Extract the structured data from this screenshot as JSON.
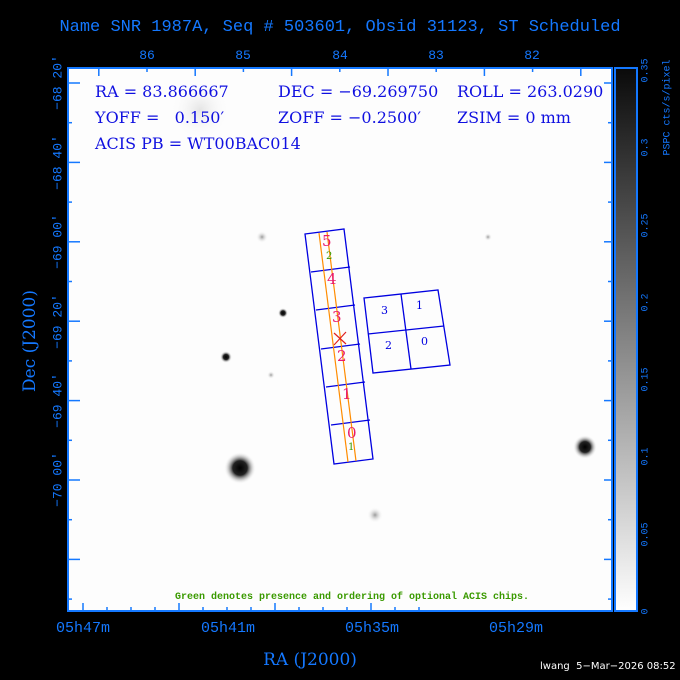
{
  "title": "Name SNR 1987A, Seq # 503601, Obsid 31123, ST Scheduled",
  "info": {
    "ra": "RA = 83.866667",
    "dec": "DEC = −69.269750",
    "roll": "ROLL = 263.0290",
    "yoff": "YOFF =   0.150′",
    "zoff": "ZOFF = −0.2500′",
    "zsim": "ZSIM = 0 mm",
    "acis_pb": "ACIS PB = WT00BAC014"
  },
  "top_axis_ticks": [
    "86",
    "85",
    "84",
    "83",
    "82"
  ],
  "bottom_axis_ticks": [
    "05h47m",
    "05h41m",
    "05h35m",
    "05h29m"
  ],
  "x_axis_label": "RA (J2000)",
  "y_axis_label": "Dec (J2000)",
  "y_axis_ticks": [
    "−68 20′",
    "−68 40′",
    "−69 00′",
    "−69 20′",
    "−69 40′",
    "−70 00′"
  ],
  "colorbar": {
    "label": "PSPC cts/s/pixel",
    "ticks": [
      "0",
      "0.05",
      "0.1",
      "0.15",
      "0.2",
      "0.25",
      "0.3",
      "0.35"
    ]
  },
  "acis_s_chips": [
    "5",
    "4",
    "3",
    "2",
    "1",
    "0"
  ],
  "optional_chips": [
    "2",
    "1"
  ],
  "acis_i_chips": [
    "3",
    "1",
    "2",
    "0"
  ],
  "note": "Green denotes presence and ordering of optional ACIS chips.",
  "footer": "lwang  5−Mar−2026 08:52",
  "colors": {
    "axis": "#1478ff",
    "chips": "#0000e0",
    "s_labels": "#e8186e",
    "optional": "#3a9a00",
    "slit": "#ff8c00"
  }
}
